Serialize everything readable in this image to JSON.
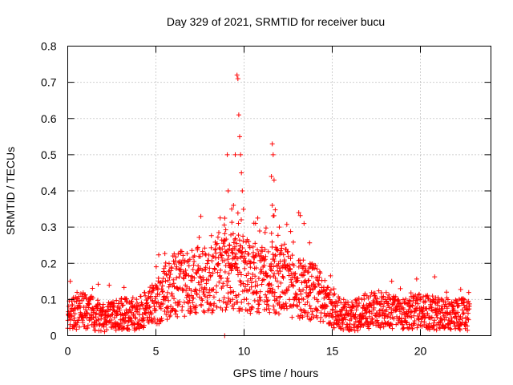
{
  "chart_data": {
    "type": "scatter",
    "title": "Day 329 of 2021, SRMTID for receiver bucu",
    "xlabel": "GPS time / hours",
    "ylabel": "SRMTID / TECUs",
    "xlim": [
      0,
      24
    ],
    "ylim": [
      0,
      0.8
    ],
    "x_ticks": [
      0,
      5,
      10,
      15,
      20
    ],
    "y_ticks": [
      0,
      0.1,
      0.2,
      0.3,
      0.4,
      0.5,
      0.6,
      0.7,
      0.8
    ],
    "x_tick_labels": [
      "0",
      "5",
      "10",
      "15",
      "20"
    ],
    "y_tick_labels": [
      "0",
      "0.1",
      "0.2",
      "0.3",
      "0.4",
      "0.5",
      "0.6",
      "0.7",
      "0.8"
    ],
    "grid": true,
    "marker": "+",
    "series_color": "#ff0000",
    "series": [
      {
        "name": "SRMTID",
        "profile": [
          {
            "x": 0.0,
            "y": 0.06
          },
          {
            "x": 1.0,
            "y": 0.07
          },
          {
            "x": 2.0,
            "y": 0.05
          },
          {
            "x": 3.0,
            "y": 0.06
          },
          {
            "x": 4.0,
            "y": 0.06
          },
          {
            "x": 5.0,
            "y": 0.09
          },
          {
            "x": 6.0,
            "y": 0.14
          },
          {
            "x": 7.0,
            "y": 0.15
          },
          {
            "x": 8.0,
            "y": 0.15
          },
          {
            "x": 9.0,
            "y": 0.18
          },
          {
            "x": 10.0,
            "y": 0.17
          },
          {
            "x": 11.0,
            "y": 0.15
          },
          {
            "x": 12.0,
            "y": 0.16
          },
          {
            "x": 13.0,
            "y": 0.13
          },
          {
            "x": 14.0,
            "y": 0.12
          },
          {
            "x": 15.0,
            "y": 0.07
          },
          {
            "x": 16.0,
            "y": 0.05
          },
          {
            "x": 17.0,
            "y": 0.07
          },
          {
            "x": 18.0,
            "y": 0.07
          },
          {
            "x": 19.0,
            "y": 0.06
          },
          {
            "x": 20.0,
            "y": 0.07
          },
          {
            "x": 21.0,
            "y": 0.06
          },
          {
            "x": 22.0,
            "y": 0.06
          },
          {
            "x": 22.8,
            "y": 0.06
          }
        ],
        "peaks": [
          {
            "x": 9.6,
            "y": 0.72
          },
          {
            "x": 9.65,
            "y": 0.71
          },
          {
            "x": 9.7,
            "y": 0.61
          },
          {
            "x": 9.75,
            "y": 0.55
          },
          {
            "x": 9.5,
            "y": 0.5
          },
          {
            "x": 9.8,
            "y": 0.5
          },
          {
            "x": 9.85,
            "y": 0.45
          },
          {
            "x": 9.05,
            "y": 0.5
          },
          {
            "x": 9.1,
            "y": 0.4
          },
          {
            "x": 9.9,
            "y": 0.4
          },
          {
            "x": 9.4,
            "y": 0.36
          },
          {
            "x": 9.3,
            "y": 0.35
          },
          {
            "x": 11.6,
            "y": 0.53
          },
          {
            "x": 11.65,
            "y": 0.5
          },
          {
            "x": 11.55,
            "y": 0.44
          },
          {
            "x": 11.7,
            "y": 0.43
          },
          {
            "x": 11.6,
            "y": 0.36
          },
          {
            "x": 12.0,
            "y": 0.3
          },
          {
            "x": 13.1,
            "y": 0.34
          },
          {
            "x": 8.9,
            "y": 0.0
          }
        ]
      }
    ]
  }
}
